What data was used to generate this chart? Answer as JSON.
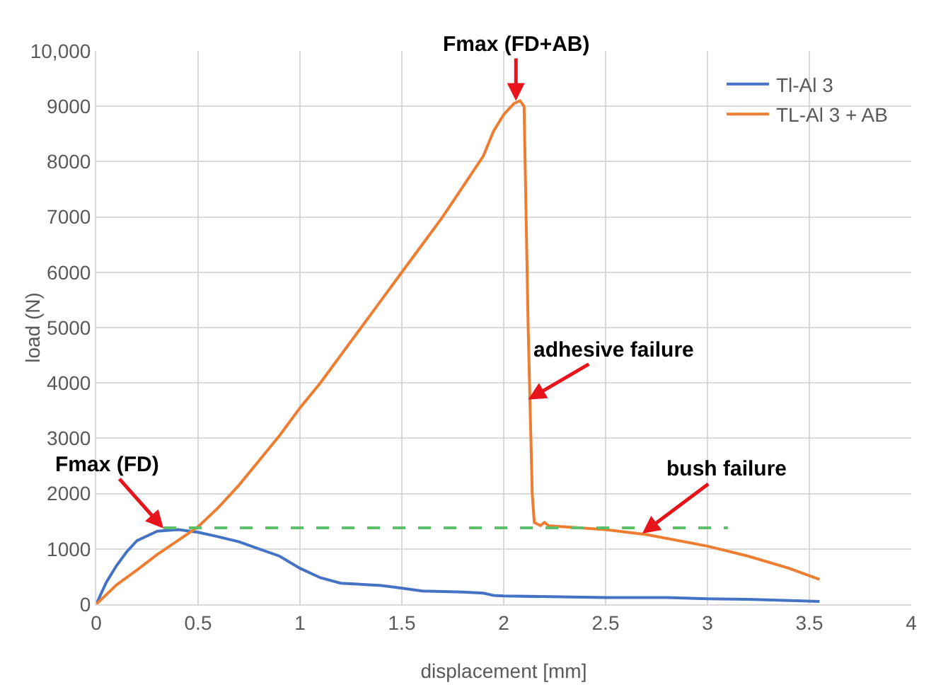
{
  "chart_data": {
    "type": "line",
    "xlabel": "displacement [mm]",
    "ylabel": "load (N)",
    "xlim": [
      0,
      4
    ],
    "xticks": [
      0,
      0.5,
      1,
      1.5,
      2,
      2.5,
      3,
      3.5,
      4
    ],
    "ylim": [
      0,
      10000
    ],
    "yticks": [
      0,
      1000,
      2000,
      3000,
      4000,
      5000,
      6000,
      7000,
      8000,
      9000,
      {
        "value": 10000,
        "label": "10,000"
      }
    ],
    "grid": true,
    "legend": "top right",
    "marker": "none",
    "line_style": "solid",
    "series": [
      {
        "name": "Tl-Al 3",
        "color": "#4472c4",
        "x": [
          0,
          0.05,
          0.1,
          0.15,
          0.2,
          0.3,
          0.4,
          0.5,
          0.6,
          0.7,
          0.8,
          0.9,
          1.0,
          1.1,
          1.2,
          1.4,
          1.5,
          1.6,
          1.8,
          1.9,
          1.95,
          2.0,
          2.5,
          2.8,
          3.0,
          3.2,
          3.55
        ],
        "values": [
          0,
          400,
          700,
          950,
          1150,
          1320,
          1350,
          1300,
          1220,
          1130,
          1000,
          870,
          650,
          480,
          380,
          340,
          290,
          240,
          220,
          200,
          160,
          150,
          120,
          120,
          100,
          90,
          50
        ]
      },
      {
        "name": "TL-Al 3 + AB",
        "color": "#ed7d31",
        "x": [
          0,
          0.1,
          0.2,
          0.3,
          0.4,
          0.5,
          0.6,
          0.7,
          0.8,
          0.9,
          1.0,
          1.1,
          1.2,
          1.3,
          1.4,
          1.5,
          1.6,
          1.7,
          1.8,
          1.9,
          1.95,
          2.0,
          2.05,
          2.08,
          2.1,
          2.11,
          2.12,
          2.13,
          2.14,
          2.15,
          2.18,
          2.2,
          2.22,
          2.5,
          2.7,
          3.0,
          3.2,
          3.4,
          3.55
        ],
        "values": [
          0,
          350,
          620,
          900,
          1150,
          1400,
          1750,
          2150,
          2600,
          3050,
          3550,
          4000,
          4500,
          5000,
          5500,
          6000,
          6500,
          7000,
          7550,
          8100,
          8550,
          8850,
          9050,
          9100,
          9000,
          7000,
          5000,
          3500,
          2000,
          1480,
          1420,
          1480,
          1420,
          1350,
          1260,
          1050,
          870,
          650,
          450
        ]
      },
      {
        "color": "#5cbf6a",
        "line_style": "dashed",
        "x": [
          0.33,
          3.1
        ],
        "values": [
          1380,
          1380
        ]
      }
    ],
    "annotations": [
      {
        "text": "Fmax (FD+AB)",
        "x": 2.06,
        "y": 9100
      },
      {
        "text": "Fmax (FD)",
        "x": 0.33,
        "y": 1370
      },
      {
        "text": "adhesive failure",
        "x": 2.12,
        "y": 3700
      },
      {
        "text": "bush failure",
        "x": 2.68,
        "y": 1280
      }
    ]
  }
}
